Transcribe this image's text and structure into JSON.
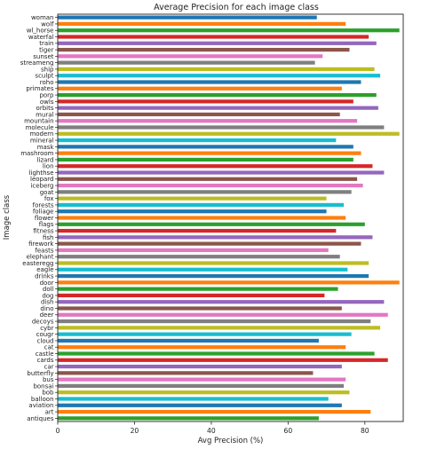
{
  "chart_data": {
    "type": "bar",
    "orientation": "horizontal",
    "title": "Average Precision for each image class",
    "xlabel": "Avg Precision (%)",
    "ylabel": "Image class",
    "xlim": [
      0,
      90
    ],
    "xticks": [
      0,
      20,
      40,
      60,
      80
    ],
    "grid": false,
    "categories": [
      "woman",
      "wolf",
      "wl_horse",
      "waterfal",
      "train",
      "tiger",
      "sunset",
      "streameng",
      "ship",
      "sculpt",
      "roho",
      "primates",
      "porp",
      "owls",
      "orbits",
      "mural",
      "mountain",
      "molecule",
      "modern",
      "mineral",
      "mask",
      "mashroom",
      "lizard",
      "lion",
      "lighthse",
      "leopard",
      "iceberg",
      "goat",
      "fox",
      "forests",
      "foliage",
      "flower",
      "flags",
      "fitness",
      "fish",
      "firework",
      "feasts",
      "elephant",
      "easteregg",
      "eagle",
      "drinks",
      "door",
      "doll",
      "dog",
      "dish",
      "dino",
      "deer",
      "decoys",
      "cybr",
      "cougr",
      "cloud",
      "cat",
      "castle",
      "cards",
      "car",
      "butterfly",
      "bus",
      "bonsai",
      "bob",
      "balloon",
      "aviation",
      "art",
      "antiques"
    ],
    "values": [
      67.5,
      75,
      89,
      81,
      83,
      76,
      69,
      67,
      82.5,
      84,
      79,
      74,
      83,
      77,
      83.5,
      73.5,
      78,
      85,
      89,
      72.5,
      77,
      79,
      77,
      82,
      85,
      78,
      79.5,
      76.5,
      70,
      74.5,
      70,
      75,
      80,
      72.5,
      82,
      79,
      70.5,
      73.5,
      81,
      75.5,
      81,
      89,
      73,
      69.5,
      85,
      74,
      86,
      81.5,
      84,
      76.5,
      68,
      75,
      82.5,
      86,
      74,
      66.5,
      75,
      74.5,
      76,
      70.5,
      74,
      81.5,
      68
    ],
    "colors": [
      "#1f77b4",
      "#ff7f0e",
      "#2ca02c",
      "#d62728",
      "#9467bd",
      "#8c564b",
      "#e377c2",
      "#7f7f7f",
      "#bcbd22",
      "#17becf"
    ]
  }
}
